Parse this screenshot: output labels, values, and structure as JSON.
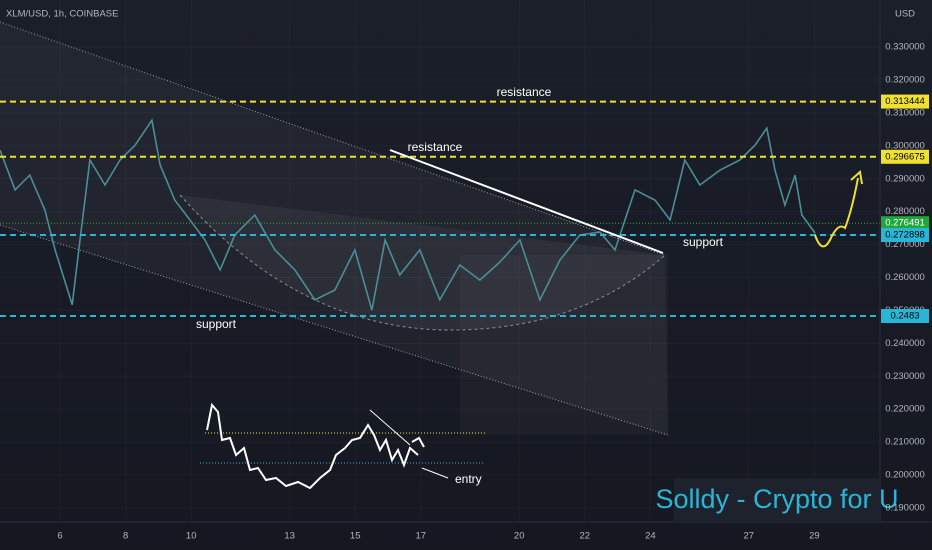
{
  "chart_data": {
    "type": "line",
    "title": "XLM/USD, 1h, COINBASE",
    "y_axis_label": "USD",
    "watermark": "Solldy - Crypto for U",
    "annotations": [
      "resistance",
      "resistance",
      "support",
      "support",
      "entry"
    ],
    "color": "#4a8e96",
    "x": [
      4.17,
      4.63,
      5.08,
      5.54,
      5.85,
      6.37,
      6.61,
      6.91,
      7.37,
      7.83,
      8.29,
      8.8,
      9.05,
      9.5,
      9.96,
      10.42,
      10.88,
      11.33,
      11.94,
      12.55,
      13.16,
      13.77,
      14.38,
      14.99,
      15.51,
      15.91,
      16.36,
      16.97,
      17.58,
      18.19,
      18.8,
      19.41,
      20.02,
      20.63,
      21.24,
      21.85,
      22.46,
      22.92,
      23.53,
      24.14,
      24.6,
      25.05,
      25.51,
      26.12,
      26.73,
      27.19,
      27.55,
      27.8,
      28.1,
      28.41,
      28.62,
      29.02
    ],
    "values": [
      0.2987,
      0.2866,
      0.2911,
      0.2805,
      0.2684,
      0.2517,
      0.2714,
      0.2957,
      0.2881,
      0.2957,
      0.3002,
      0.3078,
      0.2942,
      0.2835,
      0.2775,
      0.2714,
      0.2623,
      0.2729,
      0.279,
      0.2684,
      0.2623,
      0.2532,
      0.2562,
      0.2684,
      0.2501,
      0.2714,
      0.2608,
      0.2684,
      0.2532,
      0.2638,
      0.2592,
      0.2647,
      0.2714,
      0.2532,
      0.2653,
      0.2729,
      0.2738,
      0.2684,
      0.2866,
      0.2835,
      0.2775,
      0.2957,
      0.2881,
      0.2926,
      0.2957,
      0.3002,
      0.3054,
      0.2926,
      0.282,
      0.2911,
      0.279,
      0.2735
    ],
    "levels": [
      {
        "value": 0.313444,
        "color": "#f0e130"
      },
      {
        "value": 0.296675,
        "color": "#f0e130"
      },
      {
        "value": 0.276491,
        "color": "#1ea83c"
      },
      {
        "value": 0.272898,
        "color": "#29b6d6"
      },
      {
        "value": 0.2483,
        "color": "#29b6d6"
      }
    ],
    "xlim": [
      4.17,
      31.0
    ],
    "xticks": [
      6,
      8,
      10,
      13,
      15,
      17,
      20,
      22,
      24,
      27,
      29
    ],
    "ylim": [
      0.1833,
      0.3443
    ],
    "yticks": [
      {
        "value": 0.19,
        "label": "0.190000"
      },
      {
        "value": 0.2,
        "label": "0.200000"
      },
      {
        "value": 0.21,
        "label": "0.210000"
      },
      {
        "value": 0.22,
        "label": "0.220000"
      },
      {
        "value": 0.23,
        "label": "0.230000"
      },
      {
        "value": 0.24,
        "label": "0.240000"
      },
      {
        "value": 0.25,
        "label": "0.250000"
      },
      {
        "value": 0.26,
        "label": "0.260000"
      },
      {
        "value": 0.27,
        "label": "0.270000"
      },
      {
        "value": 0.28,
        "label": "0.280000"
      },
      {
        "value": 0.29,
        "label": "0.290000"
      },
      {
        "value": 0.3,
        "label": "0.300000"
      },
      {
        "value": 0.31,
        "label": "0.310000"
      },
      {
        "value": 0.32,
        "label": "0.320000"
      },
      {
        "value": 0.33,
        "label": "0.330000"
      }
    ]
  }
}
